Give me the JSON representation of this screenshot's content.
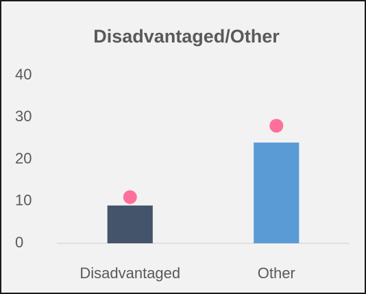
{
  "chart_data": {
    "type": "bar",
    "title": "Disadvantaged/Other",
    "categories": [
      "Disadvantaged",
      "Other"
    ],
    "series": [
      {
        "type": "bar",
        "colors": [
          "#44546a",
          "#5b9bd5"
        ],
        "values": [
          9,
          24
        ]
      },
      {
        "type": "dot",
        "color": "#ff6f9c",
        "values": [
          11,
          28
        ]
      }
    ],
    "ylim": [
      0,
      40
    ],
    "yticks": [
      0,
      10,
      20,
      30,
      40
    ],
    "grid": false
  }
}
